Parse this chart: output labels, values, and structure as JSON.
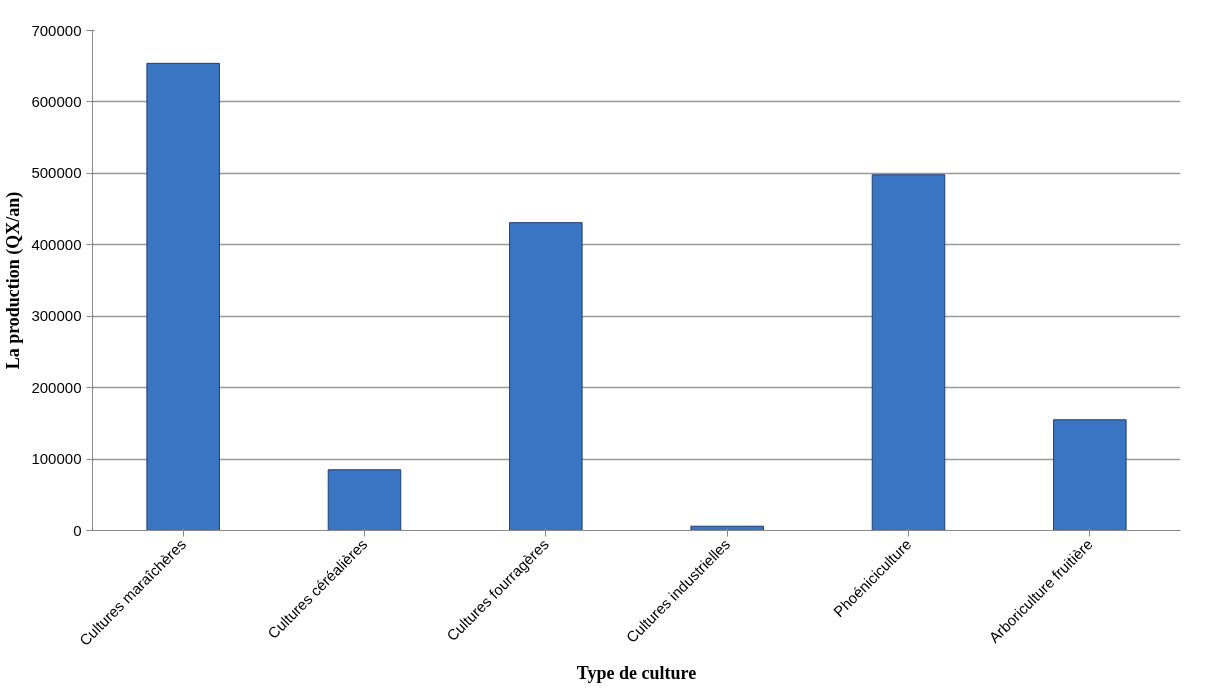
{
  "chart_data": {
    "type": "bar",
    "xlabel": "Type de culture",
    "ylabel": "La production (QX/an)",
    "categories": [
      "Cultures maraîchères",
      "Cultures céréalières",
      "Cultures fourragères",
      "Cultures industrielles",
      "Phoéniciculture",
      "Arboriculture fruitière"
    ],
    "values": [
      654000,
      85000,
      431000,
      6000,
      498000,
      155000
    ],
    "color": "#3a75c4",
    "ylim": [
      0,
      700000
    ],
    "yticks": [
      0,
      100000,
      200000,
      300000,
      400000,
      500000,
      600000,
      700000
    ],
    "grid": "y"
  }
}
